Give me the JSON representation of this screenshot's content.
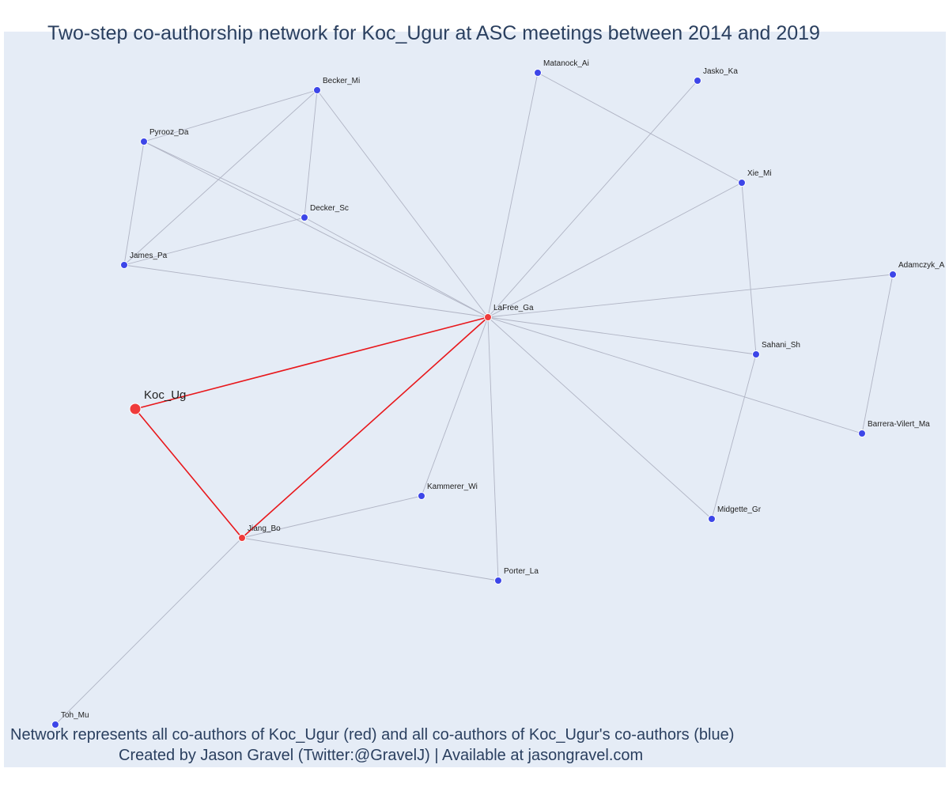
{
  "title": "Two-step co-authorship network for Koc_Ugur at ASC meetings between 2014 and 2019",
  "caption": {
    "line1": "Network represents all co-authors of Koc_Ugur (red) and all co-authors of Koc_Ugur's co-authors (blue)",
    "line2": "Created by Jason Gravel (Twitter:@GravelJ) | Available at jasongravel.com"
  },
  "colors": {
    "focal": "#ef3b3b",
    "coauthor": "#ef3b3b",
    "second_step": "#3d46e8",
    "edge": "#b0b4c4",
    "focal_edge": "#e8171b",
    "label": "#222222"
  },
  "nodes": [
    {
      "id": "Koc_Ug",
      "label": "Koc_Ug",
      "group": "focal"
    },
    {
      "id": "LaFree_Ga",
      "label": "LaFree_Ga",
      "group": "coauthor"
    },
    {
      "id": "Jiang_Bo",
      "label": "Jiang_Bo",
      "group": "coauthor"
    },
    {
      "id": "Becker_Mi",
      "label": "Becker_Mi",
      "group": "second_step"
    },
    {
      "id": "Pyrooz_Da",
      "label": "Pyrooz_Da",
      "group": "second_step"
    },
    {
      "id": "Decker_Sc",
      "label": "Decker_Sc",
      "group": "second_step"
    },
    {
      "id": "James_Pa",
      "label": "James_Pa",
      "group": "second_step"
    },
    {
      "id": "Matanock_Ai",
      "label": "Matanock_Ai",
      "group": "second_step"
    },
    {
      "id": "Jasko_Ka",
      "label": "Jasko_Ka",
      "group": "second_step"
    },
    {
      "id": "Xie_Mi",
      "label": "Xie_Mi",
      "group": "second_step"
    },
    {
      "id": "Adamczyk_A",
      "label": "Adamczyk_A",
      "group": "second_step"
    },
    {
      "id": "Sahani_Sh",
      "label": "Sahani_Sh",
      "group": "second_step"
    },
    {
      "id": "Barrera-Vilert_Ma",
      "label": "Barrera-Vilert_Ma",
      "group": "second_step"
    },
    {
      "id": "Kammerer_Wi",
      "label": "Kammerer_Wi",
      "group": "second_step"
    },
    {
      "id": "Midgette_Gr",
      "label": "Midgette_Gr",
      "group": "second_step"
    },
    {
      "id": "Porter_La",
      "label": "Porter_La",
      "group": "second_step"
    },
    {
      "id": "Toh_Mu",
      "label": "Toh_Mu",
      "group": "second_step"
    }
  ],
  "edges": [
    {
      "source": "Koc_Ug",
      "target": "LaFree_Ga",
      "focal": true
    },
    {
      "source": "Koc_Ug",
      "target": "Jiang_Bo",
      "focal": true
    },
    {
      "source": "Jiang_Bo",
      "target": "LaFree_Ga",
      "focal": true
    },
    {
      "source": "Becker_Mi",
      "target": "Pyrooz_Da"
    },
    {
      "source": "Becker_Mi",
      "target": "Decker_Sc"
    },
    {
      "source": "Becker_Mi",
      "target": "James_Pa"
    },
    {
      "source": "Becker_Mi",
      "target": "LaFree_Ga"
    },
    {
      "source": "Pyrooz_Da",
      "target": "James_Pa"
    },
    {
      "source": "Pyrooz_Da",
      "target": "Decker_Sc"
    },
    {
      "source": "Pyrooz_Da",
      "target": "LaFree_Ga"
    },
    {
      "source": "Decker_Sc",
      "target": "James_Pa"
    },
    {
      "source": "Decker_Sc",
      "target": "LaFree_Ga"
    },
    {
      "source": "James_Pa",
      "target": "LaFree_Ga"
    },
    {
      "source": "Matanock_Ai",
      "target": "LaFree_Ga"
    },
    {
      "source": "Matanock_Ai",
      "target": "Xie_Mi"
    },
    {
      "source": "Jasko_Ka",
      "target": "LaFree_Ga"
    },
    {
      "source": "Xie_Mi",
      "target": "LaFree_Ga"
    },
    {
      "source": "Xie_Mi",
      "target": "Sahani_Sh"
    },
    {
      "source": "Adamczyk_A",
      "target": "LaFree_Ga"
    },
    {
      "source": "Adamczyk_A",
      "target": "Barrera-Vilert_Ma"
    },
    {
      "source": "Sahani_Sh",
      "target": "LaFree_Ga"
    },
    {
      "source": "Sahani_Sh",
      "target": "Midgette_Gr"
    },
    {
      "source": "Barrera-Vilert_Ma",
      "target": "LaFree_Ga"
    },
    {
      "source": "Kammerer_Wi",
      "target": "LaFree_Ga"
    },
    {
      "source": "Kammerer_Wi",
      "target": "Jiang_Bo"
    },
    {
      "source": "Midgette_Gr",
      "target": "LaFree_Ga"
    },
    {
      "source": "Porter_La",
      "target": "LaFree_Ga"
    },
    {
      "source": "Porter_La",
      "target": "Jiang_Bo"
    },
    {
      "source": "Toh_Mu",
      "target": "Jiang_Bo"
    }
  ]
}
